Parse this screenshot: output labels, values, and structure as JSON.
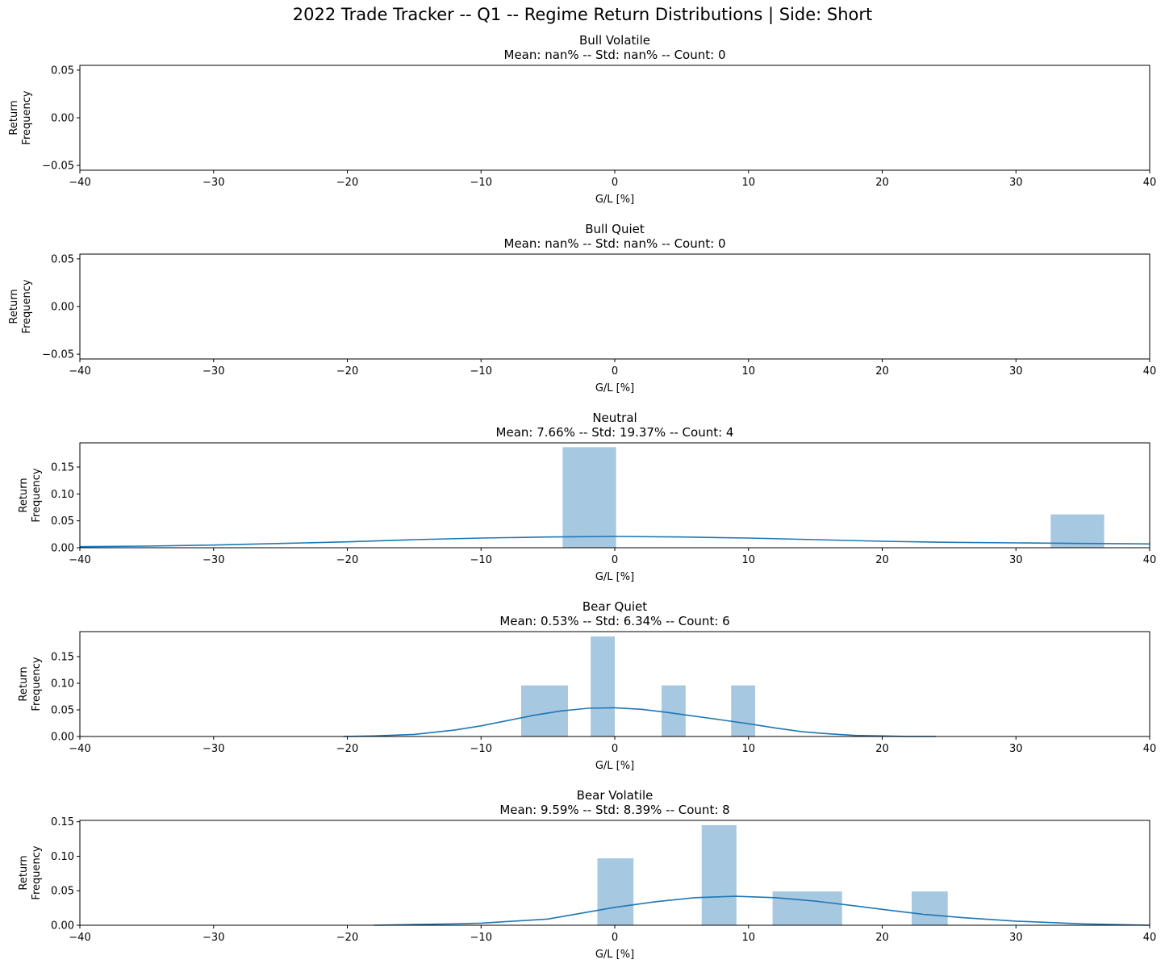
{
  "figure": {
    "suptitle": "2022 Trade Tracker -- Q1 -- Regime Return Distributions | Side: Short"
  },
  "colors": {
    "bar": "#a6c8e0",
    "kde": "#1f77b4",
    "axis": "#000000"
  },
  "chart_data": [
    {
      "type": "bar",
      "title": "Bull Volatile",
      "subtitle": "Mean: nan% -- Std: nan% -- Count: 0",
      "xlabel": "G/L [%]",
      "ylabel": [
        "Return",
        "Frequency"
      ],
      "xlim": [
        -40,
        40
      ],
      "ylim": [
        -0.055,
        0.055
      ],
      "xticks": [
        "−40",
        "−30",
        "−20",
        "−10",
        "0",
        "10",
        "20",
        "30",
        "40"
      ],
      "yticks": [
        {
          "value": 0.05,
          "label": "0.05"
        },
        {
          "value": 0.0,
          "label": "0.00"
        },
        {
          "value": -0.05,
          "label": "−0.05"
        }
      ],
      "bars": [],
      "kde": []
    },
    {
      "type": "bar",
      "title": "Bull Quiet",
      "subtitle": "Mean: nan% -- Std: nan% -- Count: 0",
      "xlabel": "G/L [%]",
      "ylabel": [
        "Return",
        "Frequency"
      ],
      "xlim": [
        -40,
        40
      ],
      "ylim": [
        -0.055,
        0.055
      ],
      "xticks": [
        "−40",
        "−30",
        "−20",
        "−10",
        "0",
        "10",
        "20",
        "30",
        "40"
      ],
      "yticks": [
        {
          "value": 0.05,
          "label": "0.05"
        },
        {
          "value": 0.0,
          "label": "0.00"
        },
        {
          "value": -0.05,
          "label": "−0.05"
        }
      ],
      "bars": [],
      "kde": []
    },
    {
      "type": "bar",
      "title": "Neutral",
      "subtitle": "Mean: 7.66% -- Std: 19.37% -- Count: 4",
      "xlabel": "G/L [%]",
      "ylabel": [
        "Return",
        "Frequency"
      ],
      "xlim": [
        -40,
        40
      ],
      "ylim": [
        0,
        0.195
      ],
      "xticks": [
        "−40",
        "−30",
        "−20",
        "−10",
        "0",
        "10",
        "20",
        "30",
        "40"
      ],
      "yticks": [
        {
          "value": 0.0,
          "label": "0.00"
        },
        {
          "value": 0.05,
          "label": "0.05"
        },
        {
          "value": 0.1,
          "label": "0.10"
        },
        {
          "value": 0.15,
          "label": "0.15"
        }
      ],
      "bars": [
        {
          "x0": -3.9,
          "x1": 0.1,
          "value": 0.187
        },
        {
          "x0": 32.6,
          "x1": 36.6,
          "value": 0.062
        }
      ],
      "kde": [
        [
          -40,
          0.002
        ],
        [
          -35,
          0.003
        ],
        [
          -30,
          0.005
        ],
        [
          -25,
          0.008
        ],
        [
          -20,
          0.011
        ],
        [
          -15,
          0.015
        ],
        [
          -10,
          0.018
        ],
        [
          -5,
          0.02
        ],
        [
          0,
          0.021
        ],
        [
          5,
          0.02
        ],
        [
          10,
          0.018
        ],
        [
          15,
          0.015
        ],
        [
          20,
          0.012
        ],
        [
          25,
          0.01
        ],
        [
          30,
          0.009
        ],
        [
          35,
          0.008
        ],
        [
          40,
          0.007
        ]
      ]
    },
    {
      "type": "bar",
      "title": "Bear Quiet",
      "subtitle": "Mean: 0.53% -- Std: 6.34% -- Count: 6",
      "xlabel": "G/L [%]",
      "ylabel": [
        "Return",
        "Frequency"
      ],
      "xlim": [
        -40,
        40
      ],
      "ylim": [
        0,
        0.197
      ],
      "xticks": [
        "−40",
        "−30",
        "−20",
        "−10",
        "0",
        "10",
        "20",
        "30",
        "40"
      ],
      "yticks": [
        {
          "value": 0.0,
          "label": "0.00"
        },
        {
          "value": 0.05,
          "label": "0.05"
        },
        {
          "value": 0.1,
          "label": "0.10"
        },
        {
          "value": 0.15,
          "label": "0.15"
        }
      ],
      "bars": [
        {
          "x0": -7.0,
          "x1": -3.5,
          "value": 0.096
        },
        {
          "x0": -1.8,
          "x1": 0.0,
          "value": 0.188
        },
        {
          "x0": 3.5,
          "x1": 5.3,
          "value": 0.096
        },
        {
          "x0": 8.7,
          "x1": 10.5,
          "value": 0.096
        }
      ],
      "kde": [
        [
          -20.3,
          0.0
        ],
        [
          -18,
          0.001
        ],
        [
          -15,
          0.004
        ],
        [
          -12,
          0.012
        ],
        [
          -10,
          0.02
        ],
        [
          -8,
          0.03
        ],
        [
          -6,
          0.04
        ],
        [
          -4,
          0.048
        ],
        [
          -2,
          0.053
        ],
        [
          0,
          0.054
        ],
        [
          2,
          0.051
        ],
        [
          4,
          0.045
        ],
        [
          6,
          0.038
        ],
        [
          8,
          0.031
        ],
        [
          10,
          0.024
        ],
        [
          12,
          0.016
        ],
        [
          14,
          0.009
        ],
        [
          16,
          0.005
        ],
        [
          18,
          0.002
        ],
        [
          20,
          0.001
        ],
        [
          22,
          0.0
        ],
        [
          24,
          0.0
        ]
      ]
    },
    {
      "type": "bar",
      "title": "Bear Volatile",
      "subtitle": "Mean: 9.59% -- Std: 8.39% -- Count: 8",
      "xlabel": "G/L [%]",
      "ylabel": [
        "Return",
        "Frequency"
      ],
      "xlim": [
        -40,
        40
      ],
      "ylim": [
        0,
        0.152
      ],
      "xticks": [
        "−40",
        "−30",
        "−20",
        "−10",
        "0",
        "10",
        "20",
        "30",
        "40"
      ],
      "yticks": [
        {
          "value": 0.0,
          "label": "0.00"
        },
        {
          "value": 0.05,
          "label": "0.05"
        },
        {
          "value": 0.1,
          "label": "0.10"
        },
        {
          "value": 0.15,
          "label": "0.15"
        }
      ],
      "bars": [
        {
          "x0": -1.3,
          "x1": 1.4,
          "value": 0.097
        },
        {
          "x0": 6.5,
          "x1": 9.1,
          "value": 0.145
        },
        {
          "x0": 11.8,
          "x1": 17.0,
          "value": 0.049
        },
        {
          "x0": 22.2,
          "x1": 24.9,
          "value": 0.049
        }
      ],
      "kde": [
        [
          -18,
          0.0
        ],
        [
          -15,
          0.001
        ],
        [
          -12,
          0.002
        ],
        [
          -10,
          0.003
        ],
        [
          -5,
          0.009
        ],
        [
          0,
          0.026
        ],
        [
          3,
          0.034
        ],
        [
          6,
          0.04
        ],
        [
          9,
          0.042
        ],
        [
          12,
          0.04
        ],
        [
          15,
          0.035
        ],
        [
          18,
          0.028
        ],
        [
          20,
          0.023
        ],
        [
          23,
          0.016
        ],
        [
          26,
          0.011
        ],
        [
          30,
          0.006
        ],
        [
          35,
          0.002
        ],
        [
          40,
          0.0
        ]
      ]
    }
  ]
}
